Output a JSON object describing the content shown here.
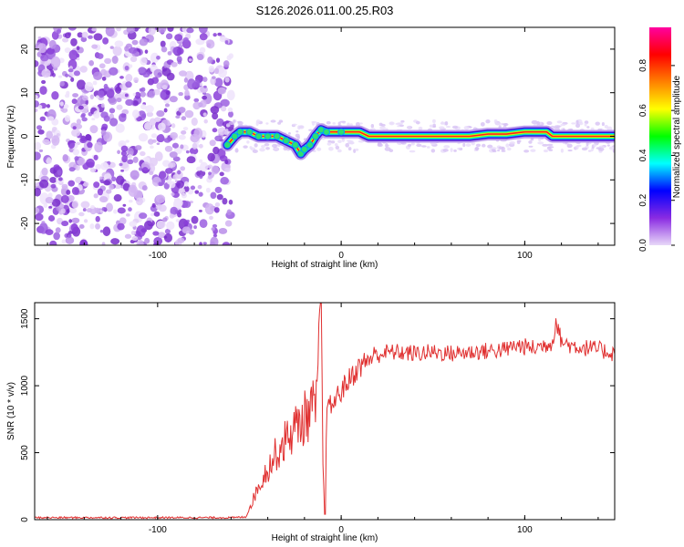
{
  "title": "S126.2026.011.00.25.R03",
  "chart_data": [
    {
      "type": "heatmap",
      "name": "spectrogram",
      "xlabel": "Height of straight line (km)",
      "ylabel": "Frequency (Hz)",
      "xlim": [
        -167,
        149
      ],
      "ylim": [
        -25,
        25
      ],
      "x_ticks": [
        -100,
        0,
        100
      ],
      "y_ticks": [
        -20,
        -10,
        0,
        10,
        20
      ],
      "x_tick_labels": [
        "-100",
        "0",
        "100"
      ],
      "y_tick_labels": [
        "-20",
        "-10",
        "0",
        "10",
        "20"
      ],
      "noise_region_end_km": -63,
      "signal_track": [
        {
          "x": -62,
          "y": -2
        },
        {
          "x": -58,
          "y": 0
        },
        {
          "x": -55,
          "y": 1
        },
        {
          "x": -50,
          "y": 1
        },
        {
          "x": -45,
          "y": 0
        },
        {
          "x": -40,
          "y": 0
        },
        {
          "x": -35,
          "y": 0
        },
        {
          "x": -30,
          "y": -1
        },
        {
          "x": -25,
          "y": -2
        },
        {
          "x": -22,
          "y": -4
        },
        {
          "x": -20,
          "y": -3
        },
        {
          "x": -17,
          "y": -2
        },
        {
          "x": -14,
          "y": 0
        },
        {
          "x": -11,
          "y": 1.5
        },
        {
          "x": -8,
          "y": 1
        },
        {
          "x": 0,
          "y": 1
        },
        {
          "x": 10,
          "y": 1
        },
        {
          "x": 15,
          "y": 0
        },
        {
          "x": 30,
          "y": 0
        },
        {
          "x": 50,
          "y": 0
        },
        {
          "x": 60,
          "y": 0
        },
        {
          "x": 70,
          "y": 0
        },
        {
          "x": 80,
          "y": 0.5
        },
        {
          "x": 90,
          "y": 0.5
        },
        {
          "x": 100,
          "y": 1
        },
        {
          "x": 112,
          "y": 1
        },
        {
          "x": 115,
          "y": 0
        },
        {
          "x": 130,
          "y": 0
        },
        {
          "x": 149,
          "y": 0
        }
      ],
      "colorbar": {
        "label": "Normalized spectral amplitude",
        "range": [
          0,
          0.97
        ],
        "ticks": [
          0,
          0.2,
          0.4,
          0.6,
          0.8
        ],
        "tick_labels": [
          "0.0",
          "0.2",
          "0.4",
          "0.6",
          "0.8"
        ],
        "colors": [
          "#e8d8f8",
          "#8a2be2",
          "#0000ff",
          "#00ffff",
          "#00ff00",
          "#ffff00",
          "#ff8000",
          "#ff0000",
          "#ff00a0"
        ]
      }
    },
    {
      "type": "line",
      "name": "snr",
      "xlabel": "Height of straight line (km)",
      "ylabel": "SNR (10 * v/v)",
      "xlim": [
        -167,
        149
      ],
      "ylim": [
        0,
        1620
      ],
      "x_ticks": [
        -100,
        0,
        100
      ],
      "y_ticks": [
        0,
        500,
        1000,
        1500
      ],
      "x_tick_labels": [
        "-100",
        "0",
        "100"
      ],
      "y_tick_labels": [
        "0",
        "500",
        "1000",
        "1500"
      ],
      "color": "#e03030",
      "x": [
        -167,
        -140,
        -110,
        -80,
        -60,
        -52,
        -48,
        -44,
        -40,
        -36,
        -32,
        -28,
        -24,
        -20,
        -16,
        -13,
        -11,
        -10,
        -9,
        -8,
        -4,
        0,
        5,
        10,
        15,
        20,
        25,
        30,
        40,
        50,
        60,
        70,
        80,
        90,
        95,
        100,
        105,
        110,
        115,
        117,
        120,
        125,
        130,
        140,
        149
      ],
      "values": [
        15,
        15,
        15,
        15,
        15,
        20,
        150,
        280,
        380,
        480,
        560,
        640,
        700,
        760,
        820,
        860,
        1620,
        420,
        40,
        800,
        880,
        960,
        1060,
        1140,
        1200,
        1230,
        1250,
        1250,
        1240,
        1250,
        1240,
        1250,
        1260,
        1270,
        1300,
        1290,
        1280,
        1300,
        1320,
        1490,
        1330,
        1300,
        1290,
        1270,
        1240
      ]
    }
  ]
}
